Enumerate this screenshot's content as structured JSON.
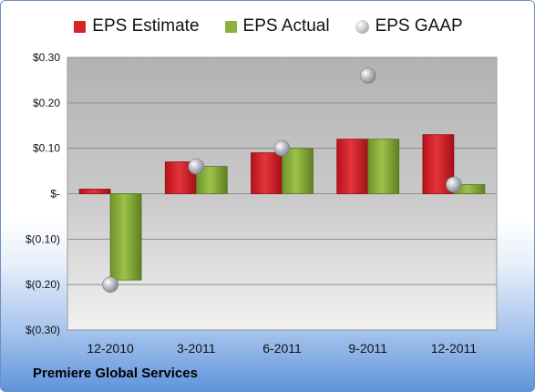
{
  "chart_data": {
    "type": "bar",
    "title": "",
    "xlabel": "",
    "ylabel": "",
    "categories": [
      "12-2010",
      "3-2011",
      "6-2011",
      "9-2011",
      "12-2011"
    ],
    "series": [
      {
        "name": "EPS Estimate",
        "kind": "bar",
        "color": "#d9232b",
        "values": [
          0.01,
          0.07,
          0.09,
          0.12,
          0.13
        ]
      },
      {
        "name": "EPS Actual",
        "kind": "bar",
        "color": "#8db23c",
        "values": [
          -0.19,
          0.06,
          0.1,
          0.12,
          0.02
        ]
      },
      {
        "name": "EPS GAAP",
        "kind": "marker",
        "color": "#a8acb3",
        "values": [
          -0.2,
          0.06,
          0.1,
          0.26,
          0.02
        ]
      }
    ],
    "ylim": [
      -0.3,
      0.3
    ],
    "yticks": [
      0.3,
      0.2,
      0.1,
      0,
      -0.1,
      -0.2,
      -0.3
    ],
    "ytick_labels": [
      "$0.30",
      "$0.20",
      "$0.10",
      "$-",
      "$(0.10)",
      "$(0.20)",
      "$(0.30)"
    ],
    "grid": true,
    "legend_position": "top"
  },
  "footer": {
    "company": "Premiere Global Services"
  }
}
